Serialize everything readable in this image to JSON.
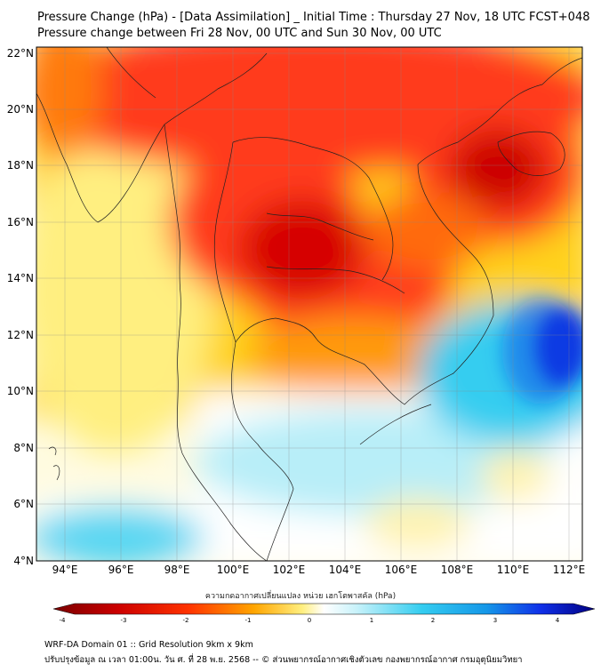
{
  "header": {
    "title_line1": "Pressure Change (hPa) - [Data Assimilation] _ Initial Time : Thursday 27 Nov, 18 UTC FCST+048",
    "title_line2": "Pressure change between Fri 28 Nov, 00 UTC and Sun 30 Nov, 00 UTC"
  },
  "map": {
    "lat_labels": [
      "4°N",
      "6°N",
      "8°N",
      "10°N",
      "12°N",
      "14°N",
      "16°N",
      "18°N",
      "20°N",
      "22°N"
    ],
    "lon_labels": [
      "94°E",
      "96°E",
      "98°E",
      "100°E",
      "102°E",
      "104°E",
      "106°E",
      "108°E",
      "110°E",
      "112°E"
    ],
    "colors": {
      "strong_fall": "#cc0000",
      "fall": "#ff3a1a",
      "weak_fall": "#ffd21e",
      "neutral": "#ffffff",
      "rise": "#22ccf0",
      "strong_rise": "#0000dd"
    }
  },
  "colorbar": {
    "label": "ความกดอากาศเปลี่ยนแปลง หน่วย เฮกโตพาสคัล (hPa)",
    "tick_labels": [
      "-4",
      "-3",
      "-2",
      "-1",
      "0",
      "1",
      "2",
      "3",
      "4"
    ]
  },
  "footer": {
    "line1": "WRF-DA Domain 01 :: Grid Resolution 9km x 9km",
    "line2": "ปรับปรุงข้อมูล ณ เวลา 01:00น. วัน ศ. ที่ 28 พ.ย. 2568 -- © ส่วนพยากรณ์อากาศเชิงตัวเลข กองพยากรณ์อากาศ กรมอุตุนิยมวิทยา"
  }
}
